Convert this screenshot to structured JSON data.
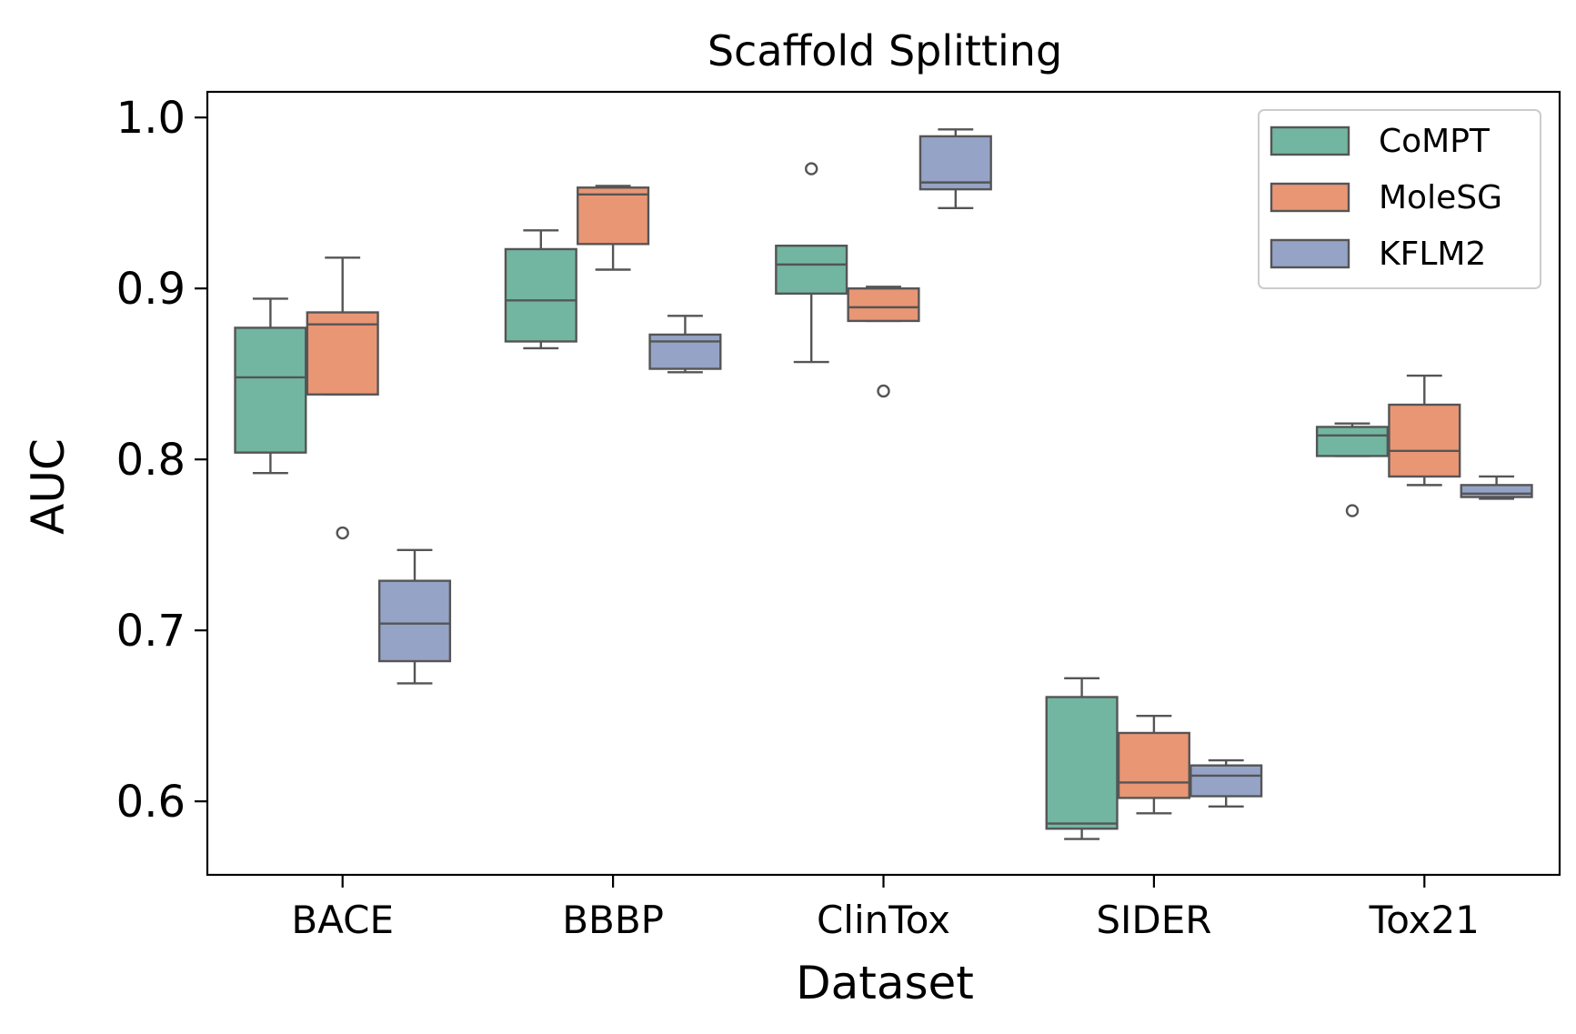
{
  "chart_data": {
    "type": "box",
    "title": "Scaffold Splitting",
    "xlabel": "Dataset",
    "ylabel": "AUC",
    "ylim": [
      0.557,
      1.015
    ],
    "yticks": [
      "0.6",
      "0.7",
      "0.8",
      "0.9",
      "1.0"
    ],
    "categories": [
      "BACE",
      "BBBP",
      "ClinTox",
      "SIDER",
      "Tox21"
    ],
    "legend_position": "top-right",
    "grid": false,
    "series": [
      {
        "name": "CoMPT",
        "color": "#72b6a1",
        "boxes": [
          {
            "whislo": 0.792,
            "q1": 0.804,
            "med": 0.848,
            "q3": 0.877,
            "whishi": 0.894,
            "fliers": []
          },
          {
            "whislo": 0.865,
            "q1": 0.869,
            "med": 0.893,
            "q3": 0.923,
            "whishi": 0.934,
            "fliers": []
          },
          {
            "whislo": 0.857,
            "q1": 0.897,
            "med": 0.914,
            "q3": 0.925,
            "whishi": 0.925,
            "fliers": [
              0.97
            ]
          },
          {
            "whislo": 0.578,
            "q1": 0.584,
            "med": 0.587,
            "q3": 0.661,
            "whishi": 0.672,
            "fliers": []
          },
          {
            "whislo": 0.802,
            "q1": 0.802,
            "med": 0.814,
            "q3": 0.819,
            "whishi": 0.821,
            "fliers": [
              0.77
            ]
          }
        ]
      },
      {
        "name": "MoleSG",
        "color": "#e99675",
        "boxes": [
          {
            "whislo": 0.838,
            "q1": 0.838,
            "med": 0.879,
            "q3": 0.886,
            "whishi": 0.918,
            "fliers": [
              0.757
            ]
          },
          {
            "whislo": 0.911,
            "q1": 0.926,
            "med": 0.955,
            "q3": 0.959,
            "whishi": 0.96,
            "fliers": []
          },
          {
            "whislo": 0.881,
            "q1": 0.881,
            "med": 0.889,
            "q3": 0.9,
            "whishi": 0.901,
            "fliers": [
              0.84
            ]
          },
          {
            "whislo": 0.593,
            "q1": 0.602,
            "med": 0.611,
            "q3": 0.64,
            "whishi": 0.65,
            "fliers": []
          },
          {
            "whislo": 0.785,
            "q1": 0.79,
            "med": 0.805,
            "q3": 0.832,
            "whishi": 0.849,
            "fliers": []
          }
        ]
      },
      {
        "name": "KFLM2",
        "color": "#95a3c6",
        "boxes": [
          {
            "whislo": 0.669,
            "q1": 0.682,
            "med": 0.704,
            "q3": 0.729,
            "whishi": 0.747,
            "fliers": []
          },
          {
            "whislo": 0.851,
            "q1": 0.853,
            "med": 0.869,
            "q3": 0.873,
            "whishi": 0.884,
            "fliers": []
          },
          {
            "whislo": 0.947,
            "q1": 0.958,
            "med": 0.962,
            "q3": 0.989,
            "whishi": 0.993,
            "fliers": []
          },
          {
            "whislo": 0.597,
            "q1": 0.603,
            "med": 0.615,
            "q3": 0.621,
            "whishi": 0.624,
            "fliers": []
          },
          {
            "whislo": 0.777,
            "q1": 0.778,
            "med": 0.78,
            "q3": 0.785,
            "whishi": 0.79,
            "fliers": []
          }
        ]
      }
    ]
  }
}
